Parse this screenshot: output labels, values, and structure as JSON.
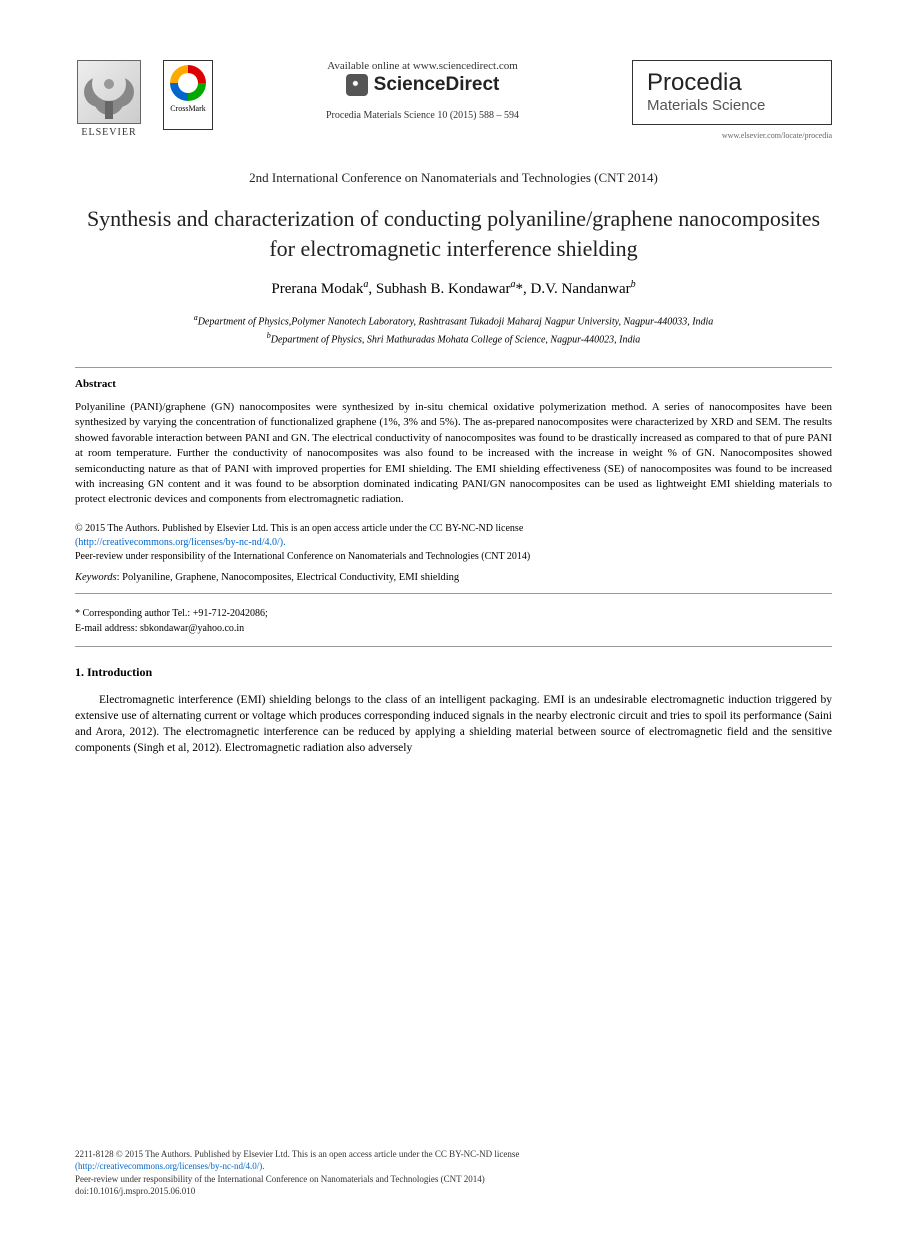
{
  "header": {
    "elsevier_label": "ELSEVIER",
    "crossmark_label": "CrossMark",
    "available_text": "Available online at www.sciencedirect.com",
    "sciencedirect_text": "ScienceDirect",
    "citation": "Procedia Materials Science 10 (2015) 588 – 594",
    "procedia_title": "Procedia",
    "procedia_subtitle": "Materials Science",
    "procedia_url": "www.elsevier.com/locate/procedia"
  },
  "conference": "2nd International Conference on Nanomaterials and Technologies (CNT 2014)",
  "title": "Synthesis and characterization of conducting polyaniline/graphene nanocomposites for electromagnetic interference shielding",
  "authors": {
    "a1_name": "Prerana Modak",
    "a1_sup": "a",
    "a2_name": "Subhash B. Kondawar",
    "a2_sup": "a",
    "a2_mark": "*",
    "a3_name": "D.V. Nandanwar",
    "a3_sup": "b"
  },
  "affiliations": {
    "a_sup": "a",
    "a_text": "Department of Physics,Polymer Nanotech Laboratory, Rashtrasant Tukadoji Maharaj Nagpur University, Nagpur-440033, India",
    "b_sup": "b",
    "b_text": "Department of Physics, Shri Mathuradas Mohata College of Science, Nagpur-440023, India"
  },
  "abstract": {
    "heading": "Abstract",
    "body": "Polyaniline (PANI)/graphene (GN) nanocomposites were synthesized by in-situ chemical oxidative polymerization method. A series of nanocomposites have been synthesized by varying the concentration of functionalized graphene (1%, 3% and 5%). The as-prepared nanocomposites were characterized by XRD and SEM. The results showed favorable interaction between PANI and GN. The electrical conductivity of nanocomposites was found to be drastically increased as compared to that of pure PANI at room temperature. Further the conductivity of nanocomposites was also found to be increased with the increase in weight % of GN. Nanocomposites showed semiconducting nature as that of PANI with improved properties for EMI shielding. The EMI shielding effectiveness (SE) of nanocomposites was found to be increased with increasing GN content and it was found to be absorption dominated indicating PANI/GN nanocomposites can be used as lightweight EMI shielding materials to protect electronic devices and components from electromagnetic radiation."
  },
  "license": {
    "line1": "© 2015 The Authors. Published by Elsevier Ltd. This is an open access article under the CC BY-NC-ND license",
    "link": "(http://creativecommons.org/licenses/by-nc-nd/4.0/).",
    "line2": "Peer-review under responsibility of the International Conference on Nanomaterials and Technologies (CNT 2014)"
  },
  "keywords": {
    "label": "Keywords",
    "text": ": Polyaniline, Graphene, Nanocomposites, Electrical Conductivity, EMI shielding"
  },
  "corresponding": {
    "line1": "* Corresponding author Tel.: +91-712-2042086;",
    "line2": "E-mail address: sbkondawar@yahoo.co.in"
  },
  "intro": {
    "heading": "1. Introduction",
    "body": "Electromagnetic interference (EMI) shielding belongs to the class of an intelligent packaging. EMI is an undesirable electromagnetic induction triggered by extensive use of alternating current or voltage which produces corresponding induced signals in the nearby electronic circuit and tries to spoil its performance (Saini and Arora, 2012). The electromagnetic interference can be reduced by applying a shielding material between source of electromagnetic field and the sensitive components (Singh et al, 2012). Electromagnetic radiation also adversely"
  },
  "footer": {
    "line1": "2211-8128 © 2015 The Authors. Published by Elsevier Ltd. This is an open access article under the CC BY-NC-ND license",
    "link": "(http://creativecommons.org/licenses/by-nc-nd/4.0/).",
    "line2": "Peer-review under responsibility of the International Conference on Nanomaterials and Technologies (CNT 2014)",
    "doi": "doi:10.1016/j.mspro.2015.06.010"
  }
}
